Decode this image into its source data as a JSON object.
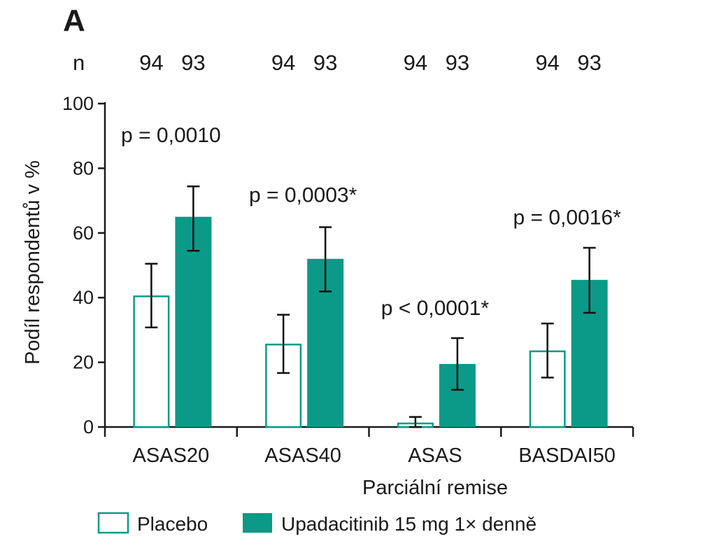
{
  "panel_label": "A",
  "n_label": "n",
  "colors": {
    "placebo_fill": "#ffffff",
    "placebo_stroke": "#0b9a87",
    "treatment_fill": "#0b9a87",
    "axis": "#1a1a1a",
    "text": "#1a1a1a"
  },
  "chart_data": {
    "type": "bar",
    "title": "",
    "xlabel": "Parciální remise",
    "ylabel": "Podíl respondentů v %",
    "ylim": [
      0,
      100
    ],
    "yticks": [
      0,
      20,
      40,
      60,
      80,
      100
    ],
    "categories": [
      "ASAS20",
      "ASAS40",
      "ASAS",
      "BASDAI50"
    ],
    "series": [
      {
        "name": "Placebo",
        "n": [
          94,
          94,
          94,
          94
        ],
        "values": [
          40.4,
          25.5,
          1.1,
          23.4
        ],
        "ci_low": [
          30.8,
          16.7,
          0.0,
          15.3
        ],
        "ci_high": [
          50.5,
          34.7,
          3.1,
          32.0
        ]
      },
      {
        "name": "Upadacitinib 15 mg 1× denně",
        "n": [
          93,
          93,
          93,
          93
        ],
        "values": [
          65.0,
          52.0,
          19.5,
          45.5
        ],
        "ci_low": [
          54.5,
          41.9,
          11.5,
          35.3
        ],
        "ci_high": [
          74.4,
          61.8,
          27.5,
          55.4
        ]
      }
    ],
    "p_values": [
      "p = 0,0010",
      "p = 0,0003*",
      "p < 0,0001*",
      "p = 0,0016*"
    ],
    "p_value_y": [
      90.5,
      72,
      37,
      65
    ],
    "legend": {
      "position": "bottom"
    },
    "grid": false
  }
}
